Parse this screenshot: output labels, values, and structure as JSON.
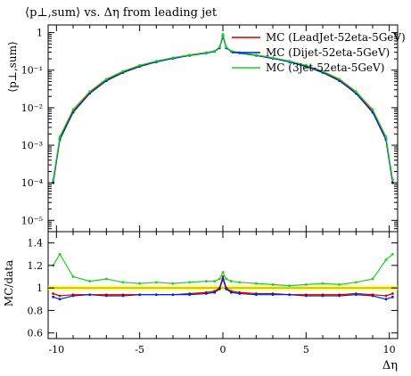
{
  "title": "⟨p⊥,sum⟩ vs. Δη from leading jet",
  "chart_data": [
    {
      "type": "line",
      "panel": "main",
      "title": "⟨p⊥,sum⟩ vs. Δη from leading jet",
      "xlabel": "Δη",
      "ylabel": "⟨p⊥,sum⟩",
      "yscale": "log",
      "xlim": [
        -10.5,
        10.5
      ],
      "ylim": [
        5e-06,
        1.6
      ],
      "ytick_labels": [
        "1",
        "10⁻¹",
        "10⁻²",
        "10⁻³",
        "10⁻⁴",
        "10⁻⁵"
      ],
      "ytick_values": [
        1,
        0.1,
        0.01,
        0.001,
        0.0001,
        1e-05
      ],
      "legend_position": "top-right",
      "x": [
        -10.2,
        -9.8,
        -9.0,
        -8.0,
        -7.0,
        -6.0,
        -5.0,
        -4.0,
        -3.0,
        -2.0,
        -1.0,
        -0.5,
        -0.2,
        0.0,
        0.2,
        0.5,
        1.0,
        2.0,
        3.0,
        4.0,
        5.0,
        6.0,
        7.0,
        8.0,
        9.0,
        9.8,
        10.2
      ],
      "series": [
        {
          "name": "MC (LeadJet-52eta-5GeV)",
          "color": "#cc0000",
          "values": [
            0.0001,
            0.0015,
            0.008,
            0.025,
            0.055,
            0.09,
            0.13,
            0.17,
            0.21,
            0.25,
            0.29,
            0.32,
            0.4,
            0.85,
            0.4,
            0.32,
            0.29,
            0.25,
            0.21,
            0.17,
            0.13,
            0.09,
            0.055,
            0.025,
            0.008,
            0.0015,
            0.0001
          ]
        },
        {
          "name": "MC (Dijet-52eta-5GeV)",
          "color": "#0022cc",
          "values": [
            0.0001,
            0.0014,
            0.0075,
            0.024,
            0.052,
            0.086,
            0.125,
            0.165,
            0.205,
            0.245,
            0.285,
            0.315,
            0.39,
            0.8,
            0.39,
            0.315,
            0.285,
            0.245,
            0.205,
            0.165,
            0.125,
            0.086,
            0.052,
            0.024,
            0.0075,
            0.0014,
            0.0001
          ]
        },
        {
          "name": "MC (3jet-52eta-5GeV)",
          "color": "#22cc22",
          "values": [
            0.00012,
            0.0017,
            0.009,
            0.027,
            0.058,
            0.094,
            0.135,
            0.175,
            0.215,
            0.255,
            0.295,
            0.325,
            0.41,
            0.9,
            0.41,
            0.325,
            0.295,
            0.255,
            0.215,
            0.175,
            0.135,
            0.094,
            0.058,
            0.027,
            0.009,
            0.0017,
            0.00012
          ]
        }
      ]
    },
    {
      "type": "line",
      "panel": "ratio",
      "xlabel": "Δη",
      "ylabel": "MC/data",
      "xlim": [
        -10.5,
        10.5
      ],
      "ylim": [
        0.55,
        1.5
      ],
      "ytick_labels": [
        "1.4",
        "1.2",
        "1",
        "0.8",
        "0.6"
      ],
      "ytick_values": [
        1.4,
        1.2,
        1.0,
        0.8,
        0.6
      ],
      "xtick_labels": [
        "-10",
        "-5",
        "0",
        "5",
        "10"
      ],
      "xtick_values": [
        -10,
        -5,
        0,
        5,
        10
      ],
      "reference_band": {
        "value": 1.0,
        "color": "#ffff00",
        "line_color": "#ccaa00"
      },
      "x": [
        -10.2,
        -9.8,
        -9.0,
        -8.0,
        -7.0,
        -6.0,
        -5.0,
        -4.0,
        -3.0,
        -2.0,
        -1.0,
        -0.5,
        -0.2,
        0.0,
        0.2,
        0.5,
        1.0,
        2.0,
        3.0,
        4.0,
        5.0,
        6.0,
        7.0,
        8.0,
        9.0,
        9.8,
        10.2
      ],
      "series": [
        {
          "name": "MC (LeadJet-52eta-5GeV)",
          "color": "#cc0000",
          "values": [
            0.95,
            0.93,
            0.94,
            0.94,
            0.94,
            0.94,
            0.94,
            0.94,
            0.94,
            0.95,
            0.96,
            0.97,
            1.0,
            1.1,
            1.0,
            0.97,
            0.96,
            0.95,
            0.95,
            0.94,
            0.94,
            0.94,
            0.94,
            0.95,
            0.94,
            0.93,
            0.95
          ]
        },
        {
          "name": "MC (Dijet-52eta-5GeV)",
          "color": "#0022cc",
          "values": [
            0.92,
            0.9,
            0.93,
            0.94,
            0.93,
            0.93,
            0.94,
            0.94,
            0.94,
            0.94,
            0.95,
            0.96,
            0.99,
            1.08,
            0.99,
            0.96,
            0.95,
            0.94,
            0.94,
            0.94,
            0.93,
            0.93,
            0.93,
            0.94,
            0.93,
            0.9,
            0.92
          ]
        },
        {
          "name": "MC (3jet-52eta-5GeV)",
          "color": "#22cc22",
          "values": [
            1.2,
            1.3,
            1.1,
            1.06,
            1.08,
            1.05,
            1.04,
            1.05,
            1.04,
            1.05,
            1.06,
            1.06,
            1.08,
            1.14,
            1.08,
            1.06,
            1.05,
            1.04,
            1.03,
            1.02,
            1.03,
            1.04,
            1.03,
            1.05,
            1.08,
            1.25,
            1.3
          ]
        }
      ]
    }
  ]
}
